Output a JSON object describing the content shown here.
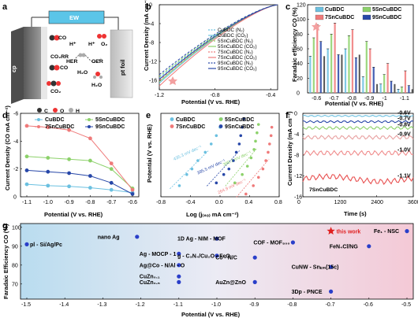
{
  "figure": {
    "panels": {
      "a": "a",
      "b": "b",
      "c": "c",
      "d": "d",
      "e": "e",
      "f": "f",
      "g": "g"
    }
  },
  "colors": {
    "CuBDC": "#6bc0e0",
    "5SnCuBDC": "#8cd16a",
    "7SnCuBDC": "#ef7a7a",
    "9SnCuBDC": "#2747a8",
    "bar_dark": "#555555"
  },
  "panel_a": {
    "ew": "EW",
    "cp": "cp",
    "pt_foil": "pt foil",
    "co_top": "CO",
    "co_mid": "CO",
    "co2rr": "CO₂RR",
    "co2": "CO₂",
    "hplus1": "H⁺",
    "hplus2": "H⁺",
    "her": "HER",
    "h2": "H₂",
    "h2o_1": "H₂O",
    "h2o_2": "H₂O",
    "oer": "OER",
    "o2": "O₂",
    "legend": {
      "c": "C",
      "o": "O",
      "h": "H"
    }
  },
  "chart_data": [
    {
      "panel": "b",
      "type": "line",
      "xlabel": "Potential (V vs. RHE)",
      "ylabel": "Current Density (mA cm⁻²)",
      "xlim": [
        -1.2,
        -0.35
      ],
      "ylim": [
        0,
        -18
      ],
      "xticks": [
        "-1.2",
        "-0.8",
        "-0.4"
      ],
      "yticks": [
        "0",
        "-4",
        "-8",
        "-12",
        "-16"
      ],
      "series": [
        {
          "name": "CuBDC (N₂)",
          "color": "#6bc0e0",
          "dash": true
        },
        {
          "name": "CuBDC (CO₂)",
          "color": "#6bc0e0",
          "dash": false
        },
        {
          "name": "5SnCuBDC (N₂)",
          "color": "#8cd16a",
          "dash": true
        },
        {
          "name": "5SnCuBDC (CO₂)",
          "color": "#8cd16a",
          "dash": false
        },
        {
          "name": "7SnCuBDC (N₂)",
          "color": "#ef7a7a",
          "dash": true
        },
        {
          "name": "7SnCuBDC (CO₂)",
          "color": "#ef7a7a",
          "dash": false
        },
        {
          "name": "9SnCuBDC (N₂)",
          "color": "#2747a8",
          "dash": true
        },
        {
          "name": "9SnCuBDC (CO₂)",
          "color": "#2747a8",
          "dash": false
        }
      ]
    },
    {
      "panel": "c",
      "type": "bar",
      "xlabel": "Potential (V vs. RHE)",
      "ylabel": "Faradaic efficiency CO (%)",
      "ylim": [
        0,
        120
      ],
      "yticks": [
        "0",
        "20",
        "40",
        "60",
        "80",
        "100",
        "120"
      ],
      "categories": [
        "-0.6",
        "-0.7",
        "-0.8",
        "-0.9",
        "-1",
        "-1.1"
      ],
      "series": [
        {
          "name": "CuBDC",
          "color": "#6bc0e0",
          "values": [
            50,
            60,
            60,
            22,
            12,
            5
          ]
        },
        {
          "name": "5SnCuBDC",
          "color": "#8cd16a",
          "values": [
            75,
            80,
            78,
            70,
            25,
            8
          ]
        },
        {
          "name": "7SnCuBDC",
          "color": "#ef7a7a",
          "values": [
            93,
            95,
            86,
            60,
            40,
            30
          ]
        },
        {
          "name": "9SnCuBDC",
          "color": "#2747a8",
          "values": [
            70,
            52,
            48,
            35,
            16,
            10
          ]
        }
      ],
      "dark_values": [
        50,
        52,
        52,
        12,
        12,
        5
      ]
    },
    {
      "panel": "d",
      "type": "line",
      "xlabel": "Potential (V vs. RHE)",
      "ylabel": "Current Density (CO mA cm⁻²)",
      "ylim": [
        0,
        -6
      ],
      "yticks": [
        "0",
        "-2",
        "-4",
        "-6"
      ],
      "x": [
        -1.1,
        -1.0,
        -0.9,
        -0.8,
        -0.7,
        -0.6
      ],
      "xticks": [
        "-1.1",
        "-1.0",
        "-0.9",
        "-0.8",
        "-0.7",
        "-0.6"
      ],
      "series": [
        {
          "name": "CuBDC",
          "color": "#6bc0e0",
          "values": [
            -0.9,
            -0.8,
            -0.75,
            -0.65,
            -0.5,
            -0.3
          ]
        },
        {
          "name": "5SnCuBDC",
          "color": "#8cd16a",
          "values": [
            -2.9,
            -2.8,
            -2.7,
            -2.6,
            -2.0,
            -0.6
          ]
        },
        {
          "name": "7SnCuBDC",
          "color": "#ef7a7a",
          "values": [
            -5.1,
            -5.0,
            -4.8,
            -4.2,
            -2.4,
            -0.5
          ]
        },
        {
          "name": "9SnCuBDC",
          "color": "#2747a8",
          "values": [
            -1.9,
            -1.8,
            -1.7,
            -1.5,
            -1.0,
            -0.2
          ]
        }
      ]
    },
    {
      "panel": "e",
      "type": "scatter",
      "xlabel": "Log (j₍₈ₒ₎ mA cm⁻²)",
      "ylabel": "Potential (V vs. RHE)",
      "xlim": [
        -0.8,
        0.8
      ],
      "ylim": [
        -0.8,
        -0.5
      ],
      "xticks": [
        "-0.8",
        "-0.4",
        "0.0",
        "0.4",
        "0.8"
      ],
      "series": [
        {
          "name": "CuBDC",
          "color": "#6bc0e0",
          "tafel": "435.3 mV dec⁻¹",
          "points": [
            [
              -0.55,
              -0.76
            ],
            [
              -0.45,
              -0.72
            ],
            [
              -0.38,
              -0.7
            ],
            [
              -0.3,
              -0.67
            ],
            [
              -0.2,
              -0.64
            ],
            [
              -0.12,
              -0.61
            ],
            [
              -0.05,
              -0.58
            ],
            [
              0.0,
              -0.55
            ],
            [
              0.02,
              -0.52
            ]
          ]
        },
        {
          "name": "5SnCuBDC",
          "color": "#8cd16a",
          "tafel": "389.7 mV dec⁻¹",
          "points": [
            [
              0.2,
              -0.75
            ],
            [
              0.3,
              -0.72
            ],
            [
              0.37,
              -0.69
            ],
            [
              0.42,
              -0.66
            ],
            [
              0.46,
              -0.63
            ],
            [
              0.48,
              -0.6
            ],
            [
              0.5,
              -0.57
            ],
            [
              0.52,
              -0.54
            ]
          ]
        },
        {
          "name": "7SnCuBDC",
          "color": "#ef7a7a",
          "tafel": "264.9 mV dec⁻¹",
          "points": [
            [
              0.35,
              -0.79
            ],
            [
              0.45,
              -0.76
            ],
            [
              0.52,
              -0.73
            ],
            [
              0.58,
              -0.7
            ],
            [
              0.62,
              -0.67
            ],
            [
              0.65,
              -0.64
            ],
            [
              0.67,
              -0.61
            ],
            [
              0.69,
              -0.58
            ],
            [
              0.7,
              -0.55
            ]
          ]
        },
        {
          "name": "9SnCuBDC",
          "color": "#2747a8",
          "tafel": "395.5 mV dec⁻¹",
          "points": [
            [
              -0.05,
              -0.75
            ],
            [
              0.05,
              -0.72
            ],
            [
              0.12,
              -0.7
            ],
            [
              0.18,
              -0.67
            ],
            [
              0.22,
              -0.64
            ],
            [
              0.26,
              -0.61
            ],
            [
              0.28,
              -0.58
            ],
            [
              0.3,
              -0.55
            ],
            [
              0.32,
              -0.52
            ]
          ]
        }
      ]
    },
    {
      "panel": "f",
      "type": "line",
      "xlabel": "Time (s)",
      "ylabel": "Current Density (mA cm⁻²)",
      "xlim": [
        0,
        3600
      ],
      "ylim": [
        0,
        -16
      ],
      "xticks": [
        "0",
        "1200",
        "2400",
        "3600"
      ],
      "yticks": [
        "0",
        "-4",
        "-8",
        "-12",
        "-16"
      ],
      "annotation": "7SnCuBDC",
      "series": [
        {
          "name": "-0.6V",
          "color": "#6bc0e0",
          "value": -0.5
        },
        {
          "name": "-0.7V",
          "color": "#2747a8",
          "value": -1.6
        },
        {
          "name": "-0.8V",
          "color": "#8cd16a",
          "value": -2.8
        },
        {
          "name": "-0.9V",
          "color": "#e8a0a0",
          "value": -4.6
        },
        {
          "name": "-1.0V",
          "color": "#f08c8c",
          "value": -7.6
        },
        {
          "name": "-1.1V",
          "color": "#e85050",
          "value": -12.6
        }
      ]
    },
    {
      "panel": "g",
      "type": "scatter",
      "xlabel": "Potential (V vs. RHE)",
      "ylabel": "Faradaic Efficiency CO (%)",
      "xlim": [
        -1.5,
        -0.5
      ],
      "ylim": [
        62,
        102
      ],
      "xticks": [
        "-1.5",
        "-1.4",
        "-1.3",
        "-1.2",
        "-1.1",
        "-1.0",
        "-0.9",
        "-0.8",
        "-0.7",
        "-0.6",
        "-0.5"
      ],
      "yticks": [
        "70",
        "80",
        "90",
        "100"
      ],
      "points": [
        {
          "x": -1.5,
          "y": 91,
          "label": "pl - Si/Ag/Pc",
          "star": false
        },
        {
          "x": -1.21,
          "y": 95,
          "label": "nano Ag",
          "star": false
        },
        {
          "x": -1.0,
          "y": 94,
          "label": "1D Ag - NIM - MOF",
          "star": false
        },
        {
          "x": -1.1,
          "y": 86,
          "label": "Ag - MOCP - 1",
          "star": false
        },
        {
          "x": -1.1,
          "y": 80,
          "label": "Ag@Co - N/Al - O",
          "star": false
        },
        {
          "x": -1.0,
          "y": 85,
          "label": "g - C₃N₄/Cu₂O - FeO",
          "star": false
        },
        {
          "x": -0.9,
          "y": 84,
          "label": "Co - N/C",
          "star": false
        },
        {
          "x": -0.8,
          "y": 92,
          "label": "COF - MOF₈₀₀",
          "star": false
        },
        {
          "x": -0.6,
          "y": 90,
          "label": "FeN₄Cl/NG",
          "star": false
        },
        {
          "x": -0.7,
          "y": 79,
          "label": "CuNW - Snₖₘ(15c)",
          "star": false
        },
        {
          "x": -1.1,
          "y": 74,
          "label": "CuZn₀.₁",
          "star": false
        },
        {
          "x": -1.1,
          "y": 71,
          "label": "CuZn₀.₅",
          "star": false
        },
        {
          "x": -0.9,
          "y": 71,
          "label": "AuZn@ZnO",
          "star": false
        },
        {
          "x": -0.7,
          "y": 66,
          "label": "3Dp - PNCE",
          "star": false
        },
        {
          "x": -0.5,
          "y": 98,
          "label": "Fe₁ - NSC",
          "star": false
        },
        {
          "x": -0.7,
          "y": 98,
          "label": "this work",
          "star": true
        }
      ]
    }
  ],
  "panel_b_legend": [
    "CuBDC (N₂)",
    "CuBDC (CO₂)",
    "5SnCuBDC (N₂)",
    "5SnCuBDC (CO₂)",
    "7SnCuBDC (N₂)",
    "7SnCuBDC (CO₂)",
    "9SnCuBDC (N₂)",
    "9SnCuBDC (CO₂)"
  ]
}
